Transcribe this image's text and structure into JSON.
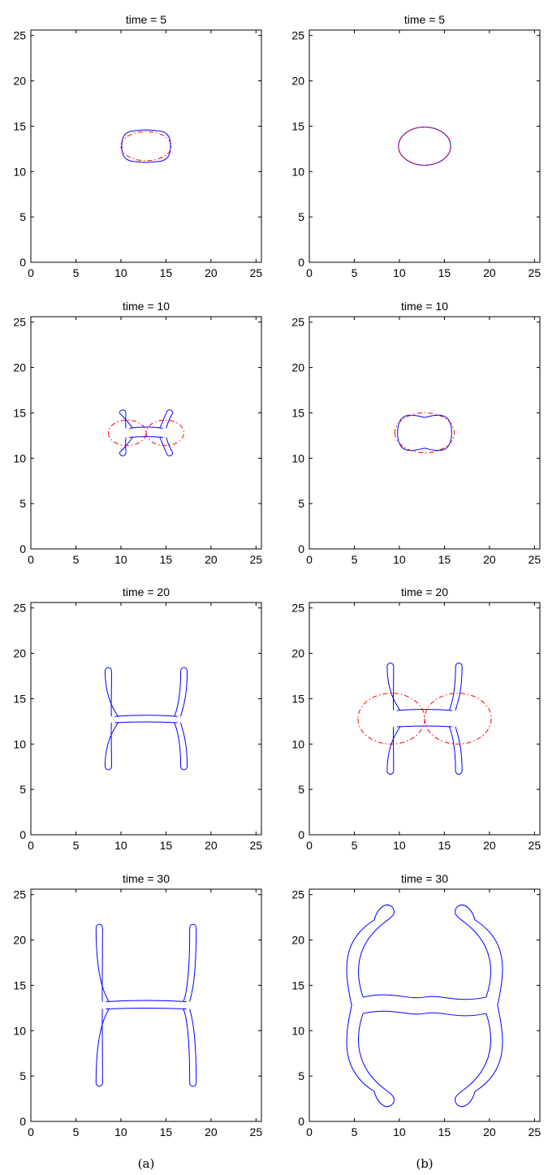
{
  "figure": {
    "captions": [
      "(a)",
      "(b)"
    ]
  },
  "chart_data": [
    {
      "type": "line",
      "panel": "(a)",
      "title": "time = 5",
      "xlim": [
        0,
        25.6
      ],
      "ylim": [
        0,
        25.6
      ],
      "xticks": [
        0,
        5,
        10,
        15,
        20,
        25
      ],
      "yticks": [
        0,
        5,
        10,
        15,
        20,
        25
      ],
      "series": [
        {
          "color": "#0000ff",
          "style": "solid",
          "shape": "rounded_rect",
          "params": {
            "cx": 12.8,
            "cy": 12.8,
            "hw": 2.7,
            "hh": 1.7
          }
        },
        {
          "color": "#ff0000",
          "style": "dashdot",
          "shape": "ellipse",
          "params": {
            "cx": 12.8,
            "cy": 12.8,
            "rx": 2.8,
            "ry": 1.6
          }
        }
      ]
    },
    {
      "type": "line",
      "panel": "(b)",
      "title": "time = 5",
      "xlim": [
        0,
        25.6
      ],
      "ylim": [
        0,
        25.6
      ],
      "xticks": [
        0,
        5,
        10,
        15,
        20,
        25
      ],
      "yticks": [
        0,
        5,
        10,
        15,
        20,
        25
      ],
      "series": [
        {
          "color": "#0000ff",
          "style": "solid",
          "shape": "ellipse",
          "params": {
            "cx": 12.8,
            "cy": 12.8,
            "rx": 2.9,
            "ry": 2.1
          }
        },
        {
          "color": "#ff0000",
          "style": "dashdot",
          "shape": "ellipse",
          "params": {
            "cx": 12.8,
            "cy": 12.8,
            "rx": 2.9,
            "ry": 2.1
          }
        }
      ]
    },
    {
      "type": "line",
      "panel": "(a)",
      "title": "time = 10",
      "xlim": [
        0,
        25.6
      ],
      "ylim": [
        0,
        25.6
      ],
      "xticks": [
        0,
        5,
        10,
        15,
        20,
        25
      ],
      "yticks": [
        0,
        5,
        10,
        15,
        20,
        25
      ],
      "series": [
        {
          "color": "#0000ff",
          "style": "solid",
          "shape": "h_shape",
          "params": {
            "cx": 12.8,
            "cy": 12.8,
            "armX": 2.6,
            "armTop": 15.2,
            "armBot": 10.4,
            "barHalf": 0.5
          }
        },
        {
          "color": "#ff0000",
          "style": "dashdot",
          "shape": "two_ellipses",
          "params": {
            "cx": 12.8,
            "cy": 12.8,
            "sep": 2.1,
            "rx": 2.1,
            "ry": 1.4
          }
        }
      ]
    },
    {
      "type": "line",
      "panel": "(b)",
      "title": "time = 10",
      "xlim": [
        0,
        25.6
      ],
      "ylim": [
        0,
        25.6
      ],
      "xticks": [
        0,
        5,
        10,
        15,
        20,
        25
      ],
      "yticks": [
        0,
        5,
        10,
        15,
        20,
        25
      ],
      "series": [
        {
          "color": "#0000ff",
          "style": "solid",
          "shape": "peanut",
          "params": {
            "cx": 12.8,
            "cy": 12.8,
            "hw": 3.0,
            "top": 15.2,
            "bot": 10.4,
            "pinch": 1.4
          }
        },
        {
          "color": "#ff0000",
          "style": "dashdot",
          "shape": "ellipse",
          "params": {
            "cx": 12.8,
            "cy": 12.8,
            "rx": 3.3,
            "ry": 2.2
          }
        }
      ]
    },
    {
      "type": "line",
      "panel": "(a)",
      "title": "time = 20",
      "xlim": [
        0,
        25.6
      ],
      "ylim": [
        0,
        25.6
      ],
      "xticks": [
        0,
        5,
        10,
        15,
        20,
        25
      ],
      "yticks": [
        0,
        5,
        10,
        15,
        20,
        25
      ],
      "series": [
        {
          "color": "#0000ff",
          "style": "solid",
          "shape": "h_shape",
          "params": {
            "cx": 12.8,
            "cy": 12.7,
            "armX": 4.2,
            "armTop": 18.3,
            "armBot": 7.3,
            "barHalf": 0.35
          }
        }
      ]
    },
    {
      "type": "line",
      "panel": "(b)",
      "title": "time = 20",
      "xlim": [
        0,
        25.6
      ],
      "ylim": [
        0,
        25.6
      ],
      "xticks": [
        0,
        5,
        10,
        15,
        20,
        25
      ],
      "yticks": [
        0,
        5,
        10,
        15,
        20,
        25
      ],
      "series": [
        {
          "color": "#0000ff",
          "style": "solid",
          "shape": "h_shape",
          "params": {
            "cx": 12.8,
            "cy": 12.8,
            "armX": 3.8,
            "armTop": 18.8,
            "armBot": 6.8,
            "barHalf": 0.9
          }
        },
        {
          "color": "#ff0000",
          "style": "dashdot",
          "shape": "two_ellipses",
          "params": {
            "cx": 12.8,
            "cy": 12.8,
            "sep": 3.7,
            "rx": 3.7,
            "ry": 2.8
          }
        }
      ]
    },
    {
      "type": "line",
      "panel": "(a)",
      "title": "time = 30",
      "xlim": [
        0,
        25.6
      ],
      "ylim": [
        0,
        25.6
      ],
      "xticks": [
        0,
        5,
        10,
        15,
        20,
        25
      ],
      "yticks": [
        0,
        5,
        10,
        15,
        20,
        25
      ],
      "series": [
        {
          "color": "#0000ff",
          "style": "solid",
          "shape": "h_shape",
          "params": {
            "cx": 12.8,
            "cy": 12.8,
            "armX": 5.2,
            "armTop": 21.6,
            "armBot": 4.0,
            "barHalf": 0.4
          }
        }
      ]
    },
    {
      "type": "line",
      "panel": "(b)",
      "title": "time = 30",
      "xlim": [
        0,
        25.6
      ],
      "ylim": [
        0,
        25.6
      ],
      "xticks": [
        0,
        5,
        10,
        15,
        20,
        25
      ],
      "yticks": [
        0,
        5,
        10,
        15,
        20,
        25
      ],
      "series": [
        {
          "color": "#0000ff",
          "style": "solid",
          "shape": "ring_pair",
          "params": {
            "cx": 12.8,
            "cy": 12.8,
            "outerX": 9.0,
            "innerX": 3.6,
            "top": 24.0,
            "bot": 1.5,
            "barHalf": 0.9
          }
        }
      ]
    }
  ]
}
